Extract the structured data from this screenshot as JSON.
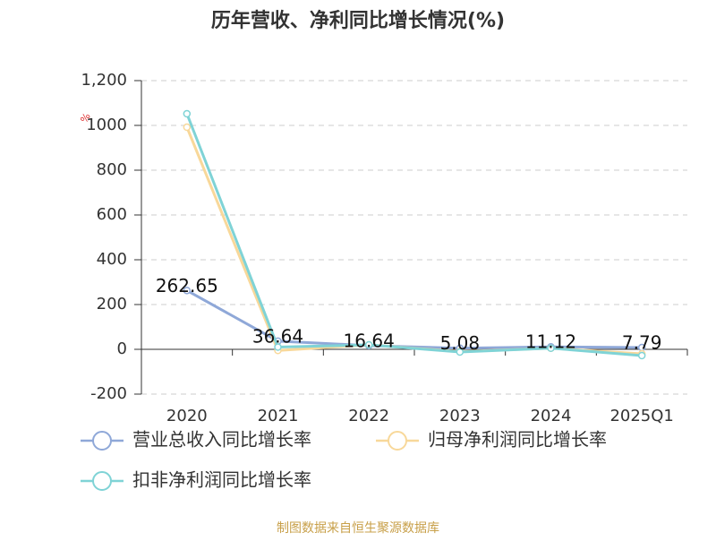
{
  "chart_data": {
    "type": "line",
    "title": "历年营收、净利同比增长情况(%)",
    "y_label": "%",
    "footer": "制图数据来自恒生聚源数据库",
    "categories": [
      "2020",
      "2021",
      "2022",
      "2023",
      "2024",
      "2025Q1"
    ],
    "series": [
      {
        "name": "营业总收入同比增长率",
        "color": "#8fa8d8",
        "values": [
          262.65,
          36.64,
          16.64,
          5.08,
          11.12,
          7.79
        ],
        "show_labels": true
      },
      {
        "name": "归母净利润同比增长率",
        "color": "#f8d89a",
        "values": [
          992,
          -5,
          20,
          -10,
          5,
          -20
        ]
      },
      {
        "name": "扣非净利润同比增长率",
        "color": "#7fd3d6",
        "values": [
          1052,
          10,
          20,
          -12,
          5,
          -28
        ]
      }
    ],
    "ylim": [
      -200,
      1200
    ],
    "yticks": [
      -200,
      0,
      200,
      400,
      600,
      800,
      1000,
      {
        "value": 1200,
        "label": "1,200"
      }
    ],
    "grid": true
  }
}
